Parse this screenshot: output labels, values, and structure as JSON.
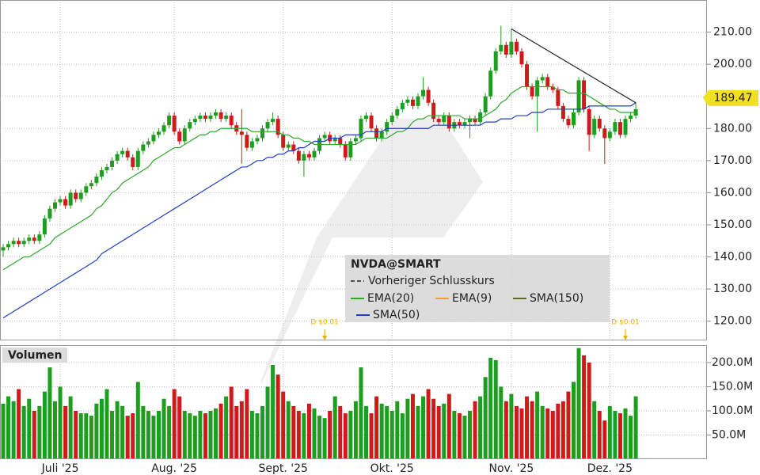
{
  "chart_data": {
    "type": "candlestick",
    "symbol": "NVDA@SMART",
    "categories": [
      null,
      null,
      null,
      null,
      null,
      null,
      null,
      null,
      null,
      null,
      null,
      "Juli '25",
      null,
      null,
      null,
      null,
      null,
      null,
      null,
      null,
      null,
      null,
      null,
      null,
      null,
      null,
      null,
      null,
      null,
      null,
      null,
      null,
      null,
      "Aug. '25",
      null,
      null,
      null,
      null,
      null,
      null,
      null,
      null,
      null,
      null,
      null,
      null,
      null,
      null,
      null,
      null,
      null,
      null,
      null,
      null,
      "Sept. '25",
      null,
      null,
      null,
      null,
      null,
      null,
      null,
      null,
      null,
      null,
      null,
      null,
      null,
      null,
      null,
      null,
      null,
      null,
      null,
      null,
      "Okt. '25",
      null,
      null,
      null,
      null,
      null,
      null,
      null,
      null,
      null,
      null,
      null,
      null,
      null,
      null,
      null,
      null,
      null,
      null,
      null,
      null,
      null,
      null,
      "Nov. '25",
      null,
      null,
      null,
      null,
      null,
      null,
      null,
      null,
      null,
      null,
      null,
      null,
      null,
      null,
      null,
      null,
      null,
      null,
      "Dez. '25",
      null,
      null,
      null,
      null,
      null
    ],
    "open": [
      142,
      143,
      144,
      145,
      144,
      145,
      146,
      145,
      147,
      152,
      155,
      157,
      158,
      156,
      160,
      158,
      160,
      162,
      163,
      165,
      167,
      168,
      170,
      172,
      173,
      171,
      168,
      173,
      175,
      176,
      178,
      179,
      181,
      184,
      179,
      176,
      180,
      182,
      183,
      184,
      183,
      184,
      185,
      183,
      184,
      181,
      179,
      178,
      174,
      176,
      177,
      180,
      182,
      183,
      178,
      174,
      175,
      173,
      170,
      172,
      171,
      173,
      177,
      178,
      176,
      177,
      175,
      171,
      176,
      177,
      183,
      184,
      180,
      177,
      179,
      182,
      184,
      186,
      188,
      189,
      187,
      190,
      192,
      188,
      183,
      182,
      184,
      180,
      182,
      181,
      182,
      183,
      182,
      185,
      190,
      198,
      204,
      206,
      203,
      207,
      204,
      200,
      193,
      190,
      195,
      196,
      193,
      192,
      187,
      183,
      181,
      185,
      195,
      186,
      178,
      183,
      180,
      177,
      179,
      182,
      178,
      183,
      184
    ],
    "high": [
      144,
      145,
      146,
      146,
      146,
      147,
      147,
      148,
      153,
      156,
      158,
      159,
      159,
      161,
      161,
      161,
      163,
      164,
      166,
      168,
      169,
      171,
      173,
      174,
      174,
      172,
      174,
      176,
      177,
      179,
      180,
      182,
      185,
      185,
      180,
      181,
      183,
      184,
      185,
      185,
      185,
      186,
      186,
      185,
      185,
      182,
      186,
      179,
      177,
      178,
      181,
      183,
      185,
      184,
      179,
      176,
      176,
      174,
      173,
      173,
      174,
      178,
      179,
      179,
      178,
      178,
      176,
      177,
      178,
      184,
      185,
      185,
      181,
      180,
      183,
      185,
      187,
      189,
      190,
      190,
      191,
      196,
      193,
      189,
      184,
      185,
      185,
      183,
      183,
      183,
      184,
      184,
      186,
      191,
      199,
      205,
      212,
      207,
      211,
      208,
      205,
      201,
      194,
      196,
      197,
      197,
      194,
      193,
      188,
      184,
      186,
      196,
      196,
      187,
      184,
      184,
      181,
      180,
      183,
      183,
      184,
      185,
      188
    ],
    "low": [
      140,
      142,
      143,
      143,
      143,
      144,
      144,
      144,
      146,
      151,
      154,
      156,
      155,
      155,
      157,
      157,
      159,
      161,
      162,
      164,
      166,
      167,
      169,
      171,
      170,
      167,
      167,
      172,
      174,
      175,
      177,
      178,
      180,
      178,
      175,
      175,
      179,
      181,
      182,
      182,
      182,
      183,
      182,
      182,
      180,
      178,
      169,
      173,
      173,
      175,
      176,
      179,
      181,
      177,
      173,
      173,
      172,
      169,
      165,
      170,
      170,
      172,
      176,
      175,
      175,
      174,
      170,
      170,
      175,
      176,
      182,
      179,
      176,
      176,
      178,
      181,
      183,
      185,
      187,
      186,
      186,
      189,
      187,
      182,
      181,
      181,
      179,
      179,
      180,
      180,
      177,
      181,
      181,
      184,
      189,
      197,
      203,
      202,
      202,
      203,
      199,
      192,
      189,
      179,
      194,
      192,
      191,
      186,
      182,
      180,
      180,
      184,
      185,
      173,
      177,
      179,
      169,
      176,
      178,
      177,
      177,
      182,
      183
    ],
    "close": [
      143,
      144,
      145,
      144,
      145,
      146,
      145,
      147,
      152,
      155,
      157,
      158,
      156,
      160,
      158,
      160,
      162,
      163,
      165,
      167,
      168,
      170,
      172,
      173,
      171,
      168,
      173,
      175,
      176,
      178,
      179,
      181,
      184,
      179,
      176,
      180,
      182,
      183,
      184,
      183,
      184,
      185,
      183,
      184,
      181,
      179,
      178,
      174,
      176,
      177,
      180,
      182,
      183,
      178,
      174,
      175,
      173,
      170,
      172,
      171,
      173,
      177,
      178,
      176,
      177,
      175,
      171,
      176,
      177,
      183,
      184,
      180,
      177,
      179,
      182,
      184,
      186,
      188,
      189,
      187,
      190,
      192,
      188,
      183,
      182,
      184,
      180,
      182,
      181,
      182,
      183,
      182,
      185,
      190,
      198,
      204,
      206,
      203,
      207,
      204,
      200,
      193,
      190,
      195,
      196,
      193,
      192,
      187,
      183,
      181,
      185,
      195,
      186,
      178,
      183,
      180,
      177,
      179,
      182,
      178,
      183,
      184,
      186
    ],
    "up_color": "#1e9e1e",
    "down_color": "#d0191b",
    "ylim": [
      114,
      220
    ],
    "yticks": [
      {
        "value": 120,
        "label": "120.00"
      },
      {
        "value": 130,
        "label": "130.00"
      },
      {
        "value": 140,
        "label": "140.00"
      },
      {
        "value": 150,
        "label": "150.00"
      },
      {
        "value": 160,
        "label": "160.00"
      },
      {
        "value": 170,
        "label": "170.00"
      },
      {
        "value": 180,
        "label": "180.00"
      },
      {
        "value": 190,
        "label": "190.00"
      },
      {
        "value": 200,
        "label": "200.00"
      },
      {
        "value": 210,
        "label": "210.00"
      }
    ],
    "grid": true,
    "last_price": 189.47,
    "last_price_color": "#f0e020",
    "previous_close_label": "Vorheriger Schlusskurs",
    "indicators": [
      {
        "name": "EMA(20)",
        "color": "#2ea82e",
        "shown": true,
        "values": [
          136,
          137,
          138,
          139,
          140,
          140,
          141,
          142,
          143,
          144,
          146,
          147,
          148,
          149,
          150,
          151,
          152,
          153,
          155,
          156,
          158,
          160,
          161,
          163,
          164,
          165,
          166,
          167,
          168,
          170,
          171,
          172,
          173,
          174,
          174,
          175,
          176,
          177,
          178,
          178,
          179,
          179,
          180,
          180,
          180,
          180,
          180,
          180,
          179,
          179,
          179,
          179,
          179,
          179,
          178,
          178,
          177,
          177,
          176,
          176,
          175,
          175,
          175,
          175,
          175,
          175,
          175,
          175,
          175,
          176,
          177,
          177,
          177,
          177,
          177,
          178,
          179,
          179,
          180,
          182,
          183,
          183,
          184,
          184,
          184,
          184,
          184,
          184,
          184,
          183,
          183,
          183,
          183,
          184,
          185,
          186,
          188,
          189,
          191,
          192,
          193,
          193,
          193,
          193,
          193,
          193,
          193,
          192,
          192,
          191,
          191,
          191,
          191,
          190,
          189,
          188,
          187,
          186,
          186,
          185,
          185,
          185,
          185
        ]
      },
      {
        "name": "EMA(9)",
        "color": "#e8a030",
        "shown": false
      },
      {
        "name": "SMA(150)",
        "color": "#556b2f",
        "shown": false
      },
      {
        "name": "SMA(50)",
        "color": "#1f3fbf",
        "shown": true,
        "values": [
          121,
          122,
          123,
          124,
          125,
          126,
          127,
          128,
          129,
          130,
          131,
          132,
          133,
          134,
          135,
          136,
          137,
          138,
          139,
          141,
          142,
          143,
          144,
          145,
          146,
          147,
          148,
          149,
          150,
          151,
          152,
          153,
          154,
          155,
          156,
          157,
          158,
          159,
          160,
          161,
          162,
          163,
          164,
          165,
          166,
          167,
          168,
          168,
          169,
          170,
          170,
          171,
          171,
          172,
          172,
          173,
          173,
          174,
          174,
          175,
          176,
          176,
          176,
          177,
          177,
          177,
          178,
          178,
          178,
          178,
          179,
          179,
          179,
          179,
          180,
          180,
          180,
          180,
          180,
          180,
          180,
          180,
          180,
          181,
          181,
          181,
          181,
          181,
          181,
          181,
          181,
          181,
          181,
          182,
          182,
          182,
          183,
          183,
          183,
          184,
          184,
          184,
          185,
          185,
          185,
          186,
          186,
          186,
          186,
          186,
          186,
          186,
          186,
          187,
          187,
          187,
          187,
          187,
          187,
          187,
          187,
          187,
          188
        ]
      }
    ],
    "trendline": {
      "x": [
        98,
        122
      ],
      "y": [
        211,
        188
      ],
      "color": "#222222"
    },
    "events": [
      {
        "index": 62,
        "label": "D $0.01"
      },
      {
        "index": 120,
        "label": "D $0.01"
      }
    ],
    "event_color": "#e8b400",
    "volume": {
      "title": "Volumen",
      "values": [
        115,
        130,
        120,
        145,
        110,
        125,
        100,
        110,
        140,
        190,
        120,
        150,
        110,
        130,
        100,
        95,
        95,
        90,
        115,
        125,
        145,
        100,
        120,
        110,
        90,
        95,
        160,
        110,
        100,
        90,
        100,
        125,
        110,
        145,
        130,
        100,
        95,
        90,
        100,
        95,
        100,
        105,
        115,
        130,
        150,
        110,
        120,
        145,
        100,
        95,
        110,
        150,
        195,
        175,
        140,
        120,
        110,
        100,
        95,
        115,
        105,
        90,
        85,
        100,
        130,
        110,
        95,
        100,
        120,
        190,
        110,
        95,
        130,
        115,
        110,
        100,
        120,
        95,
        125,
        135,
        110,
        130,
        145,
        125,
        110,
        115,
        135,
        100,
        95,
        90,
        100,
        120,
        130,
        170,
        210,
        205,
        150,
        120,
        135,
        110,
        105,
        130,
        120,
        140,
        110,
        105,
        100,
        115,
        120,
        140,
        160,
        230,
        215,
        200,
        120,
        100,
        80,
        110,
        100,
        95,
        105,
        90,
        130
      ],
      "ylim": [
        0,
        236
      ],
      "yticks": [
        {
          "value": 50,
          "label": "50.0M"
        },
        {
          "value": 100,
          "label": "100.0M"
        },
        {
          "value": 150,
          "label": "150.0M"
        },
        {
          "value": 200,
          "label": "200.0M"
        }
      ]
    }
  }
}
